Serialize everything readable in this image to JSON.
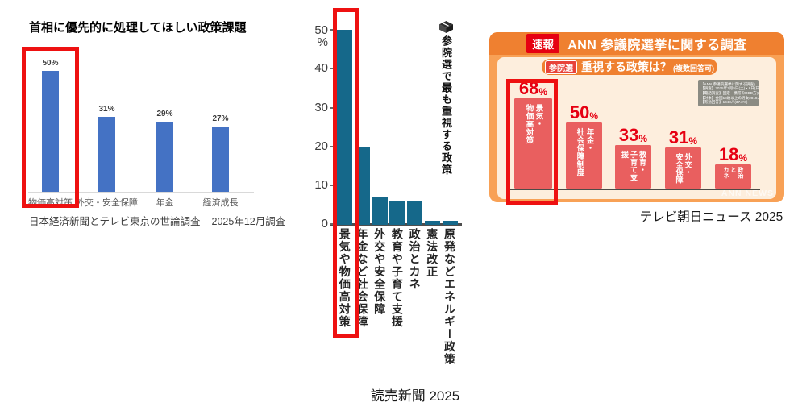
{
  "colors": {
    "nikkei_bar": "#4472c4",
    "yomiuri_bar": "#15688a",
    "ann_bar": "#e95f5f",
    "ann_percent": "#e60012",
    "highlight_red": "#ee1111",
    "ann_header_orange": "#ef8030",
    "ann_frame_orange": "#f8a156",
    "ann_panel_peach": "#fdeedd"
  },
  "nikkei": {
    "title": "首相に優先的に処理してほしい政策課題",
    "caption_survey": "日本経済新聞とテレビ東京の世論調査",
    "caption_date": "2025年12月調査"
  },
  "yomiuri": {
    "title": "参院選で最も重視する政策",
    "cube_icon": "ballot-box-icon",
    "caption": "読売新聞 2025"
  },
  "ann": {
    "header_badge": "速報",
    "header_title": "ANN 参議院選挙に関する調査",
    "subtitle_badge": "参院選",
    "subtitle_title": "重視する政策は？",
    "subtitle_note": "(複数回答可)",
    "info_box": [
      "「ANN 参議院選挙に関する調査」",
      "【調査】2025年7月5日(土)・6日(日)",
      "【電話調査】固定・携帯のRDD方式",
      "【対象】全国18歳以上の男女2818人",
      "【有効回答】1048人(37.2%)"
    ],
    "watermark": "ANN NEWS",
    "caption": "テレビ朝日ニュース 2025"
  },
  "chart_data": [
    {
      "type": "bar",
      "title": "首相に優先的に処理してほしい政策課題",
      "source": "日本経済新聞とテレビ東京の世論調査 2025年12月調査",
      "categories": [
        "物価高対策",
        "外交・安全保障",
        "年金",
        "経済成長"
      ],
      "values": [
        50,
        31,
        29,
        27
      ],
      "unit": "%",
      "ylim": [
        0,
        55
      ],
      "grid": false,
      "bar_color": "#4472c4",
      "highlighted_category": "物価高対策"
    },
    {
      "type": "bar",
      "title": "参院選で最も重視する政策",
      "source": "読売新聞 2025",
      "categories": [
        "景気や物価高対策",
        "年金など社会保障",
        "外交や安全保障",
        "教育や子育て支援",
        "政治とカネ",
        "憲法改正",
        "原発などエネルギー政策"
      ],
      "values": [
        50,
        20,
        7,
        6,
        6,
        1,
        1
      ],
      "unit": "%",
      "ylabel": "%",
      "yticks": [
        0,
        10,
        20,
        30,
        40,
        50
      ],
      "ylim": [
        0,
        52
      ],
      "grid": false,
      "bar_color": "#15688a",
      "highlighted_category": "景気や物価高対策"
    },
    {
      "type": "bar",
      "title": "速報 ANN 参議院選挙に関する調査 — 参院選 重視する政策は？(複数回答可)",
      "source": "テレビ朝日ニュース 2025",
      "categories": [
        "景気・物価高対策",
        "年金・社会保障制度",
        "教育・子育て支援",
        "外交・安全保障",
        "政治とカネ"
      ],
      "category_lines": [
        [
          "景気・",
          "物価高対策"
        ],
        [
          "年金・",
          "社会保障制度"
        ],
        [
          "教育・",
          "子育て支援"
        ],
        [
          "外交・",
          "安全保障"
        ],
        [
          "政治と",
          "カネ"
        ]
      ],
      "values": [
        68,
        50,
        33,
        31,
        18
      ],
      "unit": "%",
      "grid": false,
      "bar_color": "#e95f5f",
      "highlighted_category": "景気・物価高対策"
    }
  ]
}
